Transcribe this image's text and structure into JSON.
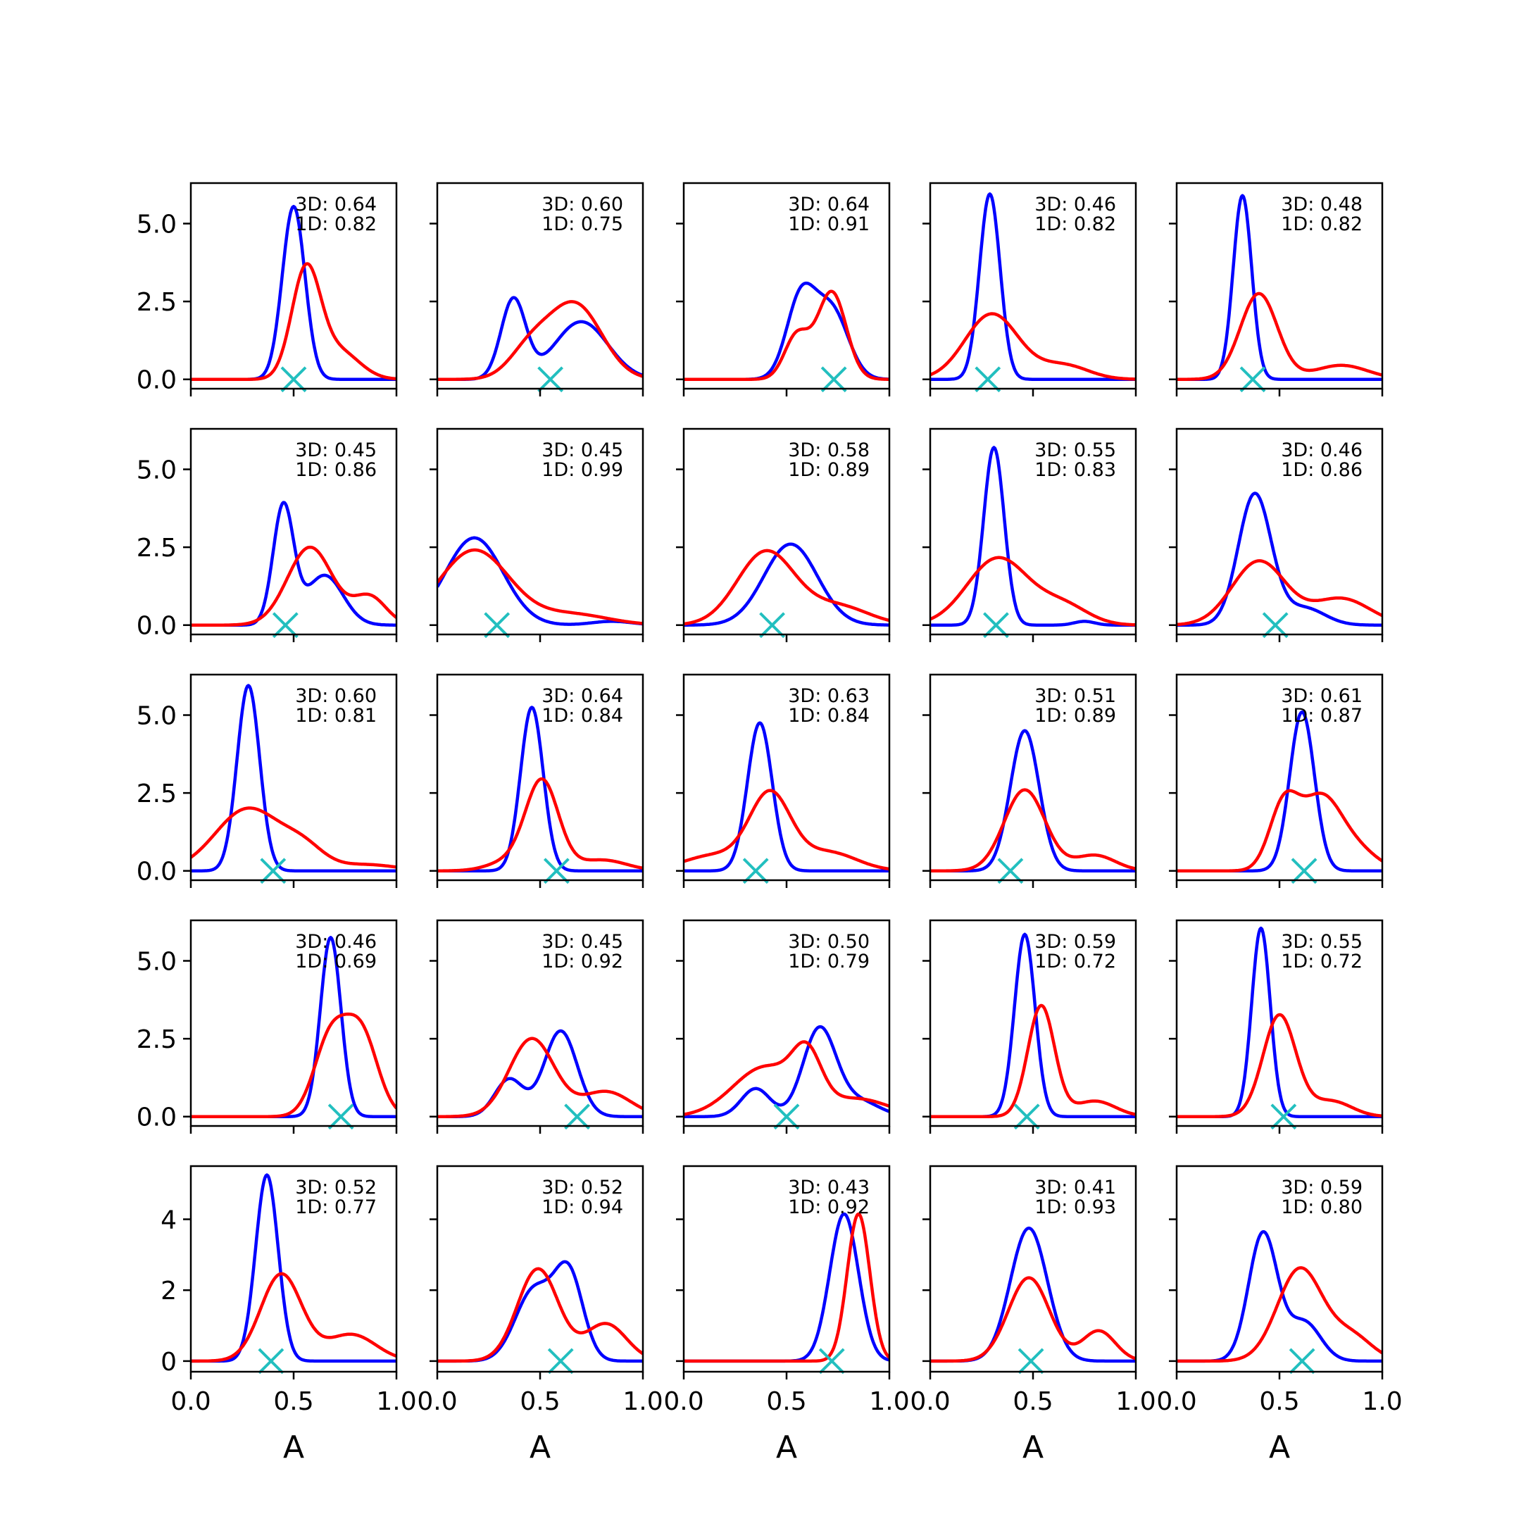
{
  "chart_data": {
    "type": "line",
    "layout": {
      "rows": 5,
      "cols": 5
    },
    "colors": {
      "series_3d": "#0000ff",
      "series_1d": "#ff0000",
      "marker": "#22bfbf"
    },
    "xlim": [
      0,
      1
    ],
    "xticks": [
      "0.0",
      "0.5",
      "1.0"
    ],
    "xlabel": "A",
    "grid": false,
    "row_axes": [
      {
        "ylim": [
          -0.3,
          6.3
        ],
        "yticks": [
          {
            "value": 0,
            "label": "0.0"
          },
          {
            "value": 2.5,
            "label": "2.5"
          },
          {
            "value": 5,
            "label": "5.0"
          }
        ]
      },
      {
        "ylim": [
          -0.3,
          6.3
        ],
        "yticks": [
          {
            "value": 0,
            "label": "0.0"
          },
          {
            "value": 2.5,
            "label": "2.5"
          },
          {
            "value": 5,
            "label": "5.0"
          }
        ]
      },
      {
        "ylim": [
          -0.3,
          6.3
        ],
        "yticks": [
          {
            "value": 0,
            "label": "0.0"
          },
          {
            "value": 2.5,
            "label": "2.5"
          },
          {
            "value": 5,
            "label": "5.0"
          }
        ]
      },
      {
        "ylim": [
          -0.3,
          6.3
        ],
        "yticks": [
          {
            "value": 0,
            "label": "0.0"
          },
          {
            "value": 2.5,
            "label": "2.5"
          },
          {
            "value": 5,
            "label": "5.0"
          }
        ]
      },
      {
        "ylim": [
          -0.3,
          5.5
        ],
        "yticks": [
          {
            "value": 0,
            "label": "0"
          },
          {
            "value": 2,
            "label": "2"
          },
          {
            "value": 4,
            "label": "4"
          }
        ]
      }
    ],
    "panels": [
      {
        "label_3d": "3D: 0.64",
        "label_1d": "1D: 0.82",
        "marker_x": 0.5,
        "blue": [
          [
            0.5,
            5.55,
            0.055
          ]
        ],
        "red": [
          [
            0.56,
            3.45,
            0.07
          ],
          [
            0.72,
            0.9,
            0.1
          ]
        ]
      },
      {
        "label_3d": "3D: 0.60",
        "label_1d": "1D: 0.75",
        "marker_x": 0.55,
        "blue": [
          [
            0.37,
            2.55,
            0.06
          ],
          [
            0.7,
            1.85,
            0.13
          ]
        ],
        "red": [
          [
            0.45,
            0.9,
            0.1
          ],
          [
            0.67,
            2.4,
            0.13
          ]
        ]
      },
      {
        "label_3d": "3D: 0.64",
        "label_1d": "1D: 0.91",
        "marker_x": 0.73,
        "blue": [
          [
            0.57,
            2.6,
            0.07
          ],
          [
            0.72,
            2.2,
            0.08
          ]
        ],
        "red": [
          [
            0.55,
            1.4,
            0.06
          ],
          [
            0.72,
            2.8,
            0.07
          ]
        ]
      },
      {
        "label_3d": "3D: 0.46",
        "label_1d": "1D: 0.82",
        "marker_x": 0.28,
        "blue": [
          [
            0.29,
            5.95,
            0.05
          ]
        ],
        "red": [
          [
            0.3,
            2.1,
            0.13
          ],
          [
            0.65,
            0.45,
            0.12
          ]
        ]
      },
      {
        "label_3d": "3D: 0.48",
        "label_1d": "1D: 0.82",
        "marker_x": 0.37,
        "blue": [
          [
            0.32,
            5.9,
            0.045
          ]
        ],
        "red": [
          [
            0.4,
            2.75,
            0.09
          ],
          [
            0.8,
            0.45,
            0.13
          ]
        ]
      },
      {
        "label_3d": "3D: 0.45",
        "label_1d": "1D: 0.86",
        "marker_x": 0.46,
        "blue": [
          [
            0.45,
            3.8,
            0.05
          ],
          [
            0.65,
            1.6,
            0.09
          ]
        ],
        "red": [
          [
            0.58,
            2.5,
            0.11
          ],
          [
            0.87,
            0.9,
            0.08
          ]
        ]
      },
      {
        "label_3d": "3D: 0.45",
        "label_1d": "1D: 0.99",
        "marker_x": 0.29,
        "blue": [
          [
            0.18,
            2.8,
            0.14
          ],
          [
            0.85,
            0.12,
            0.1
          ]
        ],
        "red": [
          [
            0.18,
            2.4,
            0.17
          ],
          [
            0.65,
            0.35,
            0.18
          ]
        ]
      },
      {
        "label_3d": "3D: 0.58",
        "label_1d": "1D: 0.89",
        "marker_x": 0.43,
        "blue": [
          [
            0.52,
            2.6,
            0.13
          ]
        ],
        "red": [
          [
            0.4,
            2.35,
            0.14
          ],
          [
            0.75,
            0.6,
            0.15
          ]
        ]
      },
      {
        "label_3d": "3D: 0.55",
        "label_1d": "1D: 0.83",
        "marker_x": 0.32,
        "blue": [
          [
            0.31,
            5.7,
            0.05
          ],
          [
            0.75,
            0.12,
            0.05
          ]
        ],
        "red": [
          [
            0.33,
            2.15,
            0.15
          ],
          [
            0.65,
            0.6,
            0.12
          ]
        ]
      },
      {
        "label_3d": "3D: 0.46",
        "label_1d": "1D: 0.86",
        "marker_x": 0.48,
        "blue": [
          [
            0.38,
            4.2,
            0.08
          ],
          [
            0.62,
            0.55,
            0.1
          ]
        ],
        "red": [
          [
            0.4,
            2.05,
            0.13
          ],
          [
            0.8,
            0.85,
            0.14
          ]
        ]
      },
      {
        "label_3d": "3D: 0.60",
        "label_1d": "1D: 0.81",
        "marker_x": 0.4,
        "blue": [
          [
            0.28,
            5.95,
            0.055
          ]
        ],
        "red": [
          [
            0.28,
            2.0,
            0.16
          ],
          [
            0.55,
            0.6,
            0.1
          ],
          [
            0.85,
            0.2,
            0.15
          ]
        ]
      },
      {
        "label_3d": "3D: 0.64",
        "label_1d": "1D: 0.84",
        "marker_x": 0.58,
        "blue": [
          [
            0.46,
            5.25,
            0.055
          ]
        ],
        "red": [
          [
            0.51,
            2.85,
            0.08
          ],
          [
            0.35,
            0.3,
            0.1
          ],
          [
            0.8,
            0.35,
            0.12
          ]
        ]
      },
      {
        "label_3d": "3D: 0.63",
        "label_1d": "1D: 0.84",
        "marker_x": 0.35,
        "blue": [
          [
            0.37,
            4.75,
            0.06
          ]
        ],
        "red": [
          [
            0.42,
            2.4,
            0.1
          ],
          [
            0.15,
            0.5,
            0.15
          ],
          [
            0.7,
            0.6,
            0.14
          ]
        ]
      },
      {
        "label_3d": "3D: 0.51",
        "label_1d": "1D: 0.89",
        "marker_x": 0.39,
        "blue": [
          [
            0.46,
            4.5,
            0.07
          ]
        ],
        "red": [
          [
            0.46,
            2.6,
            0.1
          ],
          [
            0.8,
            0.5,
            0.1
          ]
        ]
      },
      {
        "label_3d": "3D: 0.61",
        "label_1d": "1D: 0.87",
        "marker_x": 0.62,
        "blue": [
          [
            0.61,
            5.1,
            0.06
          ]
        ],
        "red": [
          [
            0.52,
            2.0,
            0.07
          ],
          [
            0.7,
            2.3,
            0.1
          ],
          [
            0.88,
            0.6,
            0.1
          ]
        ]
      },
      {
        "label_3d": "3D: 0.46",
        "label_1d": "1D: 0.69",
        "marker_x": 0.73,
        "blue": [
          [
            0.68,
            5.75,
            0.05
          ]
        ],
        "red": [
          [
            0.68,
            2.5,
            0.08
          ],
          [
            0.83,
            2.6,
            0.08
          ]
        ]
      },
      {
        "label_3d": "3D: 0.45",
        "label_1d": "1D: 0.92",
        "marker_x": 0.68,
        "blue": [
          [
            0.6,
            2.75,
            0.08
          ],
          [
            0.35,
            1.2,
            0.07
          ]
        ],
        "red": [
          [
            0.46,
            2.5,
            0.11
          ],
          [
            0.82,
            0.8,
            0.12
          ]
        ]
      },
      {
        "label_3d": "3D: 0.50",
        "label_1d": "1D: 0.79",
        "marker_x": 0.5,
        "blue": [
          [
            0.66,
            2.8,
            0.08
          ],
          [
            0.35,
            0.9,
            0.07
          ],
          [
            0.85,
            0.5,
            0.1
          ]
        ],
        "red": [
          [
            0.4,
            1.6,
            0.16
          ],
          [
            0.6,
            1.5,
            0.07
          ],
          [
            0.85,
            0.55,
            0.15
          ]
        ]
      },
      {
        "label_3d": "3D: 0.59",
        "label_1d": "1D: 0.72",
        "marker_x": 0.47,
        "blue": [
          [
            0.46,
            5.85,
            0.05
          ]
        ],
        "red": [
          [
            0.54,
            3.55,
            0.065
          ],
          [
            0.8,
            0.5,
            0.1
          ]
        ]
      },
      {
        "label_3d": "3D: 0.55",
        "label_1d": "1D: 0.72",
        "marker_x": 0.52,
        "blue": [
          [
            0.41,
            6.05,
            0.045
          ]
        ],
        "red": [
          [
            0.5,
            3.25,
            0.08
          ],
          [
            0.75,
            0.5,
            0.1
          ]
        ]
      },
      {
        "label_3d": "3D: 0.52",
        "label_1d": "1D: 0.77",
        "marker_x": 0.39,
        "blue": [
          [
            0.37,
            5.25,
            0.055
          ]
        ],
        "red": [
          [
            0.44,
            2.45,
            0.1
          ],
          [
            0.78,
            0.75,
            0.12
          ]
        ]
      },
      {
        "label_3d": "3D: 0.52",
        "label_1d": "1D: 0.94",
        "marker_x": 0.6,
        "blue": [
          [
            0.47,
            2.0,
            0.09
          ],
          [
            0.64,
            2.4,
            0.07
          ]
        ],
        "red": [
          [
            0.49,
            2.6,
            0.1
          ],
          [
            0.82,
            1.05,
            0.1
          ]
        ]
      },
      {
        "label_3d": "3D: 0.43",
        "label_1d": "1D: 0.92",
        "marker_x": 0.72,
        "blue": [
          [
            0.78,
            4.15,
            0.07
          ]
        ],
        "red": [
          [
            0.85,
            4.15,
            0.055
          ]
        ]
      },
      {
        "label_3d": "3D: 0.41",
        "label_1d": "1D: 0.93",
        "marker_x": 0.49,
        "blue": [
          [
            0.48,
            3.75,
            0.09
          ]
        ],
        "red": [
          [
            0.48,
            2.35,
            0.1
          ],
          [
            0.82,
            0.85,
            0.08
          ]
        ]
      },
      {
        "label_3d": "3D: 0.59",
        "label_1d": "1D: 0.80",
        "marker_x": 0.61,
        "blue": [
          [
            0.42,
            3.6,
            0.07
          ],
          [
            0.62,
            1.1,
            0.08
          ]
        ],
        "red": [
          [
            0.6,
            2.6,
            0.11
          ],
          [
            0.85,
            0.7,
            0.1
          ]
        ]
      }
    ]
  }
}
